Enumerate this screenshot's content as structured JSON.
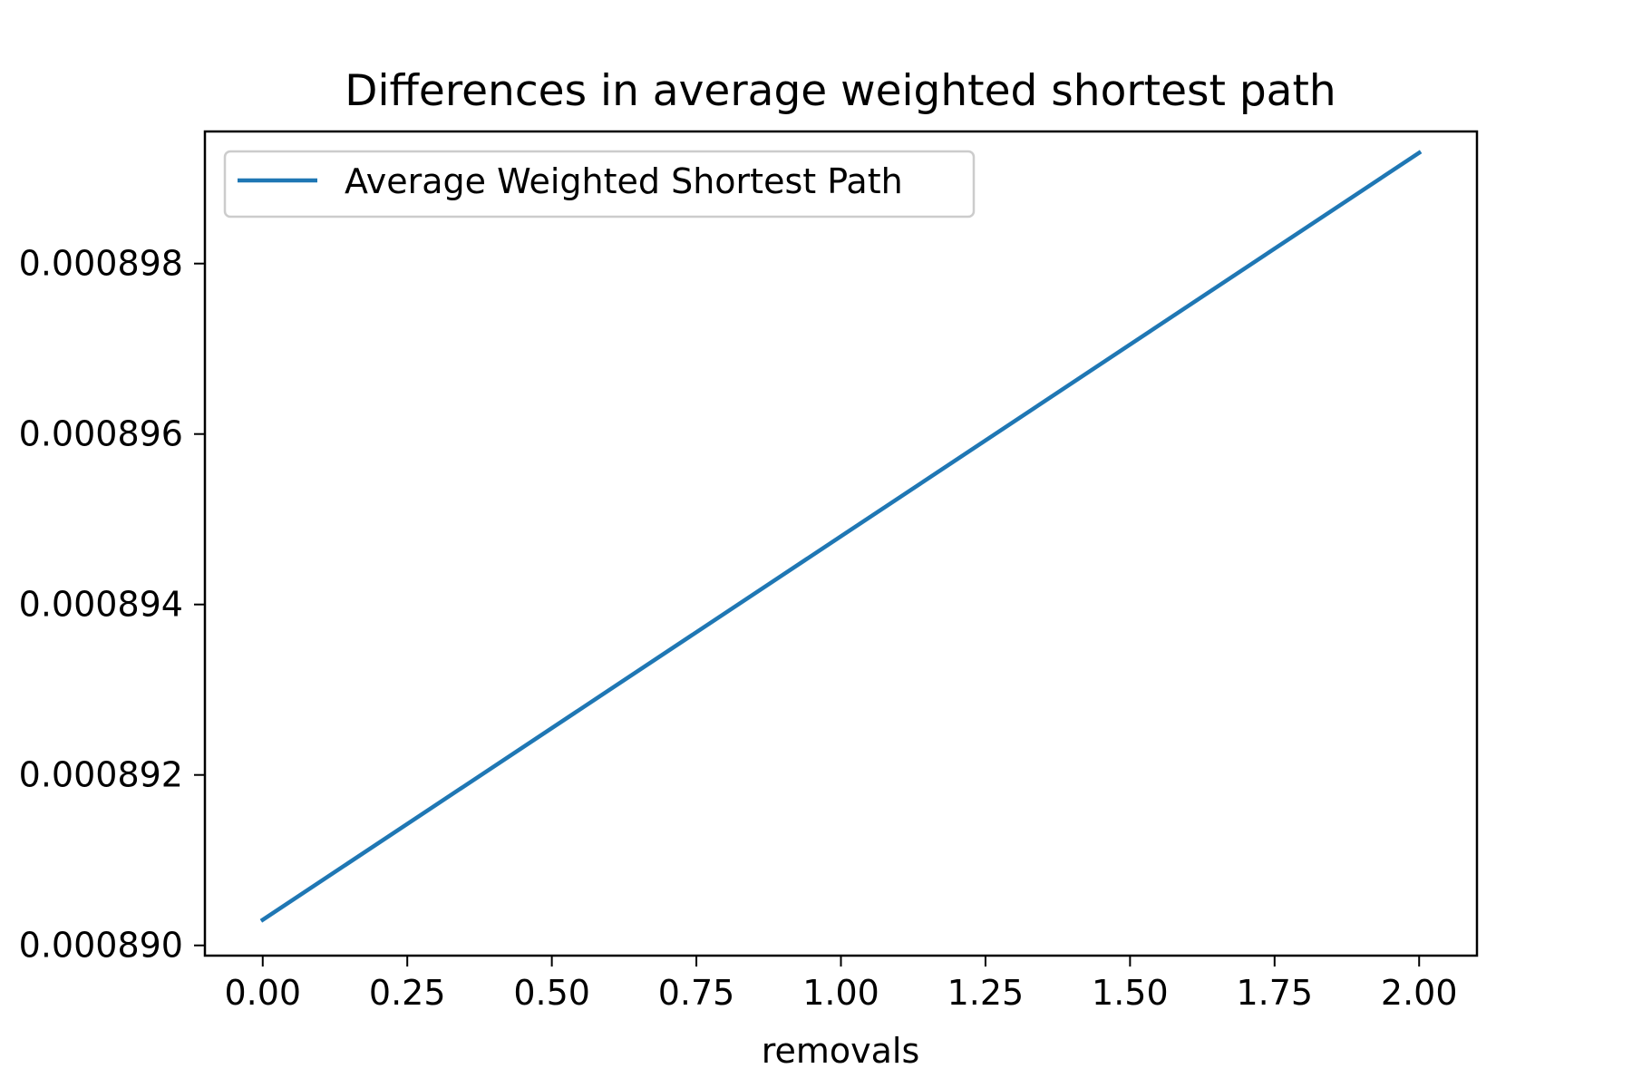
{
  "chart_data": {
    "type": "line",
    "title": "Differences in average weighted shortest path",
    "xlabel": "removals",
    "ylabel": "",
    "xlim": [
      -0.1,
      2.1
    ],
    "ylim": [
      0.00088988,
      0.00089955
    ],
    "xticks": [
      0.0,
      0.25,
      0.5,
      0.75,
      1.0,
      1.25,
      1.5,
      1.75,
      2.0
    ],
    "xtick_labels": [
      "0.00",
      "0.25",
      "0.50",
      "0.75",
      "1.00",
      "1.25",
      "1.50",
      "1.75",
      "2.00"
    ],
    "yticks": [
      0.00089,
      0.000892,
      0.000894,
      0.000896,
      0.000898
    ],
    "ytick_labels": [
      "0.000890",
      "0.000892",
      "0.000894",
      "0.000896",
      "0.000898"
    ],
    "grid": false,
    "legend_position": "upper left",
    "series": [
      {
        "name": "Average Weighted Shortest Path",
        "color": "#1f77b4",
        "x": [
          0,
          1,
          2
        ],
        "y": [
          0.0008903,
          0.0008948,
          0.0008993
        ]
      }
    ]
  }
}
